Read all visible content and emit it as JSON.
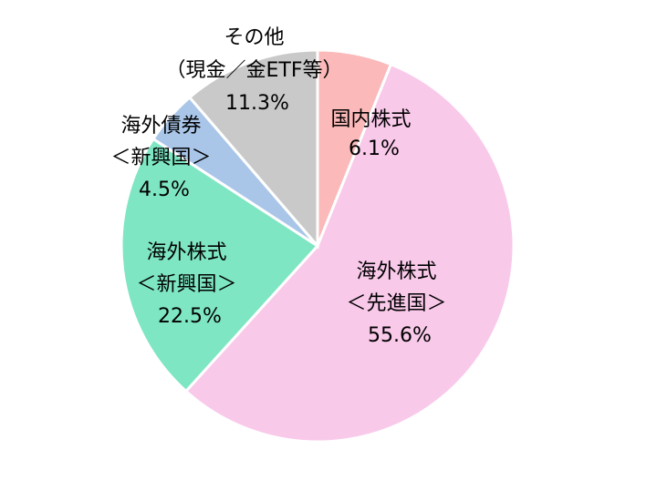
{
  "chart_data": {
    "type": "pie",
    "start_angle_deg": 0,
    "direction": "clockwise",
    "slices": [
      {
        "label": [
          "国内株式"
        ],
        "value": 6.1,
        "value_label": "6.1%",
        "color": "#fbb9b9"
      },
      {
        "label": [
          "海外株式",
          "＜先進国＞"
        ],
        "value": 55.6,
        "value_label": "55.6%",
        "color": "#f9c9ea"
      },
      {
        "label": [
          "海外株式",
          "＜新興国＞"
        ],
        "value": 22.5,
        "value_label": "22.5%",
        "color": "#7ee6c3"
      },
      {
        "label": [
          "海外債券",
          "＜新興国＞"
        ],
        "value": 4.5,
        "value_label": "4.5%",
        "color": "#a9c6e9"
      },
      {
        "label": [
          "その他",
          "（現金／金ETF等）"
        ],
        "value": 11.3,
        "value_label": "11.3%",
        "color": "#c9c9c9"
      }
    ]
  }
}
